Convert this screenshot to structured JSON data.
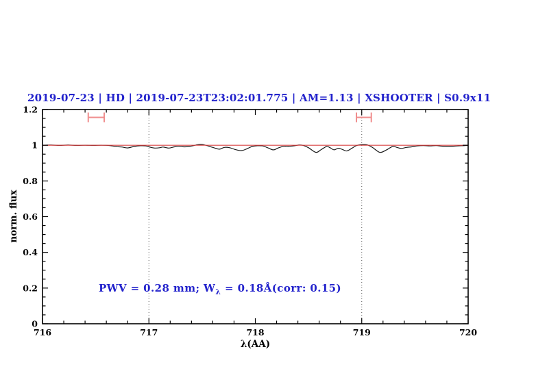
{
  "chart_data": {
    "type": "line",
    "title": "2019-07-23 | HD | 2019-07-23T23:02:01.775 | AM=1.13 | XSHOOTER | S0.9x11",
    "title_color": "#2222cc",
    "xlabel": "λ(AA)",
    "ylabel": "norm. flux",
    "xlim": [
      716,
      720
    ],
    "ylim": [
      0,
      1.2
    ],
    "x_major_ticks": [
      716,
      717,
      718,
      719,
      720
    ],
    "x_tick_labels": [
      "716",
      "717",
      "718",
      "719",
      "720"
    ],
    "x_minor_step": 0.2,
    "y_major_ticks": [
      0,
      0.2,
      0.4,
      0.6,
      0.8,
      1,
      1.2
    ],
    "y_tick_labels": [
      "0",
      "0.2",
      "0.4",
      "0.6",
      "0.8",
      "1",
      "1.2"
    ],
    "y_minor_step": 0.05,
    "grid": "off",
    "frame_color": "#000000",
    "vertical_guides": {
      "x": [
        717,
        719
      ],
      "style": "dotted",
      "color": "#555555"
    },
    "series": [
      {
        "name": "observed-spectrum",
        "color": "#1a1a1a",
        "width": 1.2,
        "points": [
          [
            716.0,
            1.0
          ],
          [
            716.08,
            1.001
          ],
          [
            716.16,
            0.999
          ],
          [
            716.24,
            1.001
          ],
          [
            716.32,
            0.999
          ],
          [
            716.4,
            1.0
          ],
          [
            716.48,
            0.999
          ],
          [
            716.56,
            1.0
          ],
          [
            716.63,
            0.998
          ],
          [
            716.7,
            0.992
          ],
          [
            716.75,
            0.99
          ],
          [
            716.8,
            0.985
          ],
          [
            716.86,
            0.993
          ],
          [
            716.92,
            0.997
          ],
          [
            716.97,
            0.996
          ],
          [
            717.02,
            0.988
          ],
          [
            717.06,
            0.984
          ],
          [
            717.1,
            0.986
          ],
          [
            717.13,
            0.99
          ],
          [
            717.16,
            0.987
          ],
          [
            717.19,
            0.984
          ],
          [
            717.24,
            0.991
          ],
          [
            717.28,
            0.994
          ],
          [
            717.33,
            0.991
          ],
          [
            717.38,
            0.993
          ],
          [
            717.42,
            0.998
          ],
          [
            717.46,
            1.003
          ],
          [
            717.5,
            1.004
          ],
          [
            717.54,
            0.999
          ],
          [
            717.6,
            0.988
          ],
          [
            717.66,
            0.978
          ],
          [
            717.71,
            0.988
          ],
          [
            717.76,
            0.986
          ],
          [
            717.81,
            0.976
          ],
          [
            717.87,
            0.97
          ],
          [
            717.92,
            0.98
          ],
          [
            717.97,
            0.993
          ],
          [
            718.02,
            0.997
          ],
          [
            718.07,
            0.996
          ],
          [
            718.12,
            0.985
          ],
          [
            718.17,
            0.974
          ],
          [
            718.22,
            0.986
          ],
          [
            718.27,
            0.994
          ],
          [
            718.32,
            0.994
          ],
          [
            718.37,
            0.997
          ],
          [
            718.41,
            1.001
          ],
          [
            718.45,
            0.999
          ],
          [
            718.5,
            0.986
          ],
          [
            718.57,
            0.96
          ],
          [
            718.62,
            0.976
          ],
          [
            718.67,
            0.993
          ],
          [
            718.7,
            0.987
          ],
          [
            718.74,
            0.974
          ],
          [
            718.78,
            0.983
          ],
          [
            718.82,
            0.976
          ],
          [
            718.86,
            0.968
          ],
          [
            718.91,
            0.984
          ],
          [
            718.95,
            0.998
          ],
          [
            719.0,
            1.003
          ],
          [
            719.05,
            1.002
          ],
          [
            719.1,
            0.988
          ],
          [
            719.17,
            0.96
          ],
          [
            719.23,
            0.973
          ],
          [
            719.29,
            0.993
          ],
          [
            719.33,
            0.988
          ],
          [
            719.37,
            0.982
          ],
          [
            719.42,
            0.988
          ],
          [
            719.47,
            0.991
          ],
          [
            719.52,
            0.996
          ],
          [
            719.58,
            0.998
          ],
          [
            719.64,
            0.996
          ],
          [
            719.7,
            0.998
          ],
          [
            719.75,
            0.995
          ],
          [
            719.81,
            0.993
          ],
          [
            719.87,
            0.995
          ],
          [
            719.93,
            0.997
          ],
          [
            720.0,
            0.999
          ]
        ]
      },
      {
        "name": "model-continuum",
        "color": "#d94040",
        "width": 1.1,
        "points": [
          [
            716.0,
            1.0
          ],
          [
            720.0,
            1.0
          ]
        ]
      }
    ],
    "range_markers": [
      {
        "x1": 716.43,
        "x2": 716.58,
        "y": 1.156,
        "cap_half_height": 0.027,
        "color": "#f08e8e"
      },
      {
        "x1": 718.95,
        "x2": 719.09,
        "y": 1.156,
        "cap_half_height": 0.027,
        "color": "#f08e8e"
      }
    ],
    "annotation": {
      "text_prefix": "PWV = 0.28 mm; W",
      "subscript": "λ",
      "text_suffix": " = 0.18Å(corr: 0.15)",
      "x": 716.53,
      "y": 0.2,
      "color": "#2222cc"
    }
  }
}
